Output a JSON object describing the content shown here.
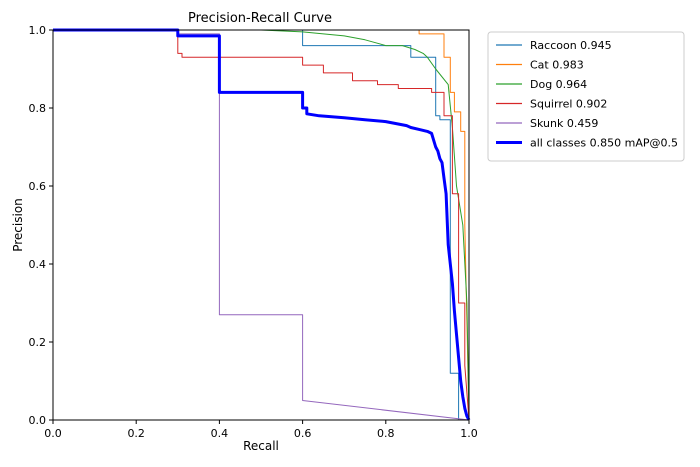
{
  "chart_data": {
    "type": "line",
    "title": "Precision-Recall Curve",
    "xlabel": "Recall",
    "ylabel": "Precision",
    "xlim": [
      0,
      1
    ],
    "ylim": [
      0,
      1
    ],
    "xticks": [
      "0.0",
      "0.2",
      "0.4",
      "0.6",
      "0.8",
      "1.0"
    ],
    "yticks": [
      "0.0",
      "0.2",
      "0.4",
      "0.6",
      "0.8",
      "1.0"
    ],
    "grid": false,
    "legend_position": "outside-top-right",
    "series": [
      {
        "name": "Raccoon 0.945",
        "color": "#1f77b4",
        "width": "normal",
        "x": [
          0,
          0.6,
          0.6,
          0.86,
          0.86,
          0.92,
          0.92,
          0.93,
          0.93,
          0.955,
          0.955,
          0.975,
          0.975,
          1.0
        ],
        "y": [
          1.0,
          1.0,
          0.96,
          0.96,
          0.93,
          0.93,
          0.78,
          0.78,
          0.77,
          0.77,
          0.12,
          0.12,
          0.0,
          0.0
        ]
      },
      {
        "name": "Cat 0.983",
        "color": "#ff7f0e",
        "width": "normal",
        "x": [
          0,
          0.88,
          0.88,
          0.94,
          0.94,
          0.955,
          0.955,
          0.965,
          0.965,
          0.98,
          0.98,
          0.99,
          0.99,
          1.0
        ],
        "y": [
          1.0,
          1.0,
          0.99,
          0.99,
          0.93,
          0.93,
          0.84,
          0.84,
          0.79,
          0.79,
          0.74,
          0.74,
          0.5,
          0.0
        ]
      },
      {
        "name": "Dog 0.964",
        "color": "#2ca02c",
        "width": "normal",
        "x": [
          0,
          0.5,
          0.6,
          0.7,
          0.75,
          0.8,
          0.84,
          0.87,
          0.89,
          0.9,
          0.92,
          0.95,
          0.96,
          0.97,
          0.985,
          0.995,
          1.0
        ],
        "y": [
          1.0,
          1.0,
          0.995,
          0.985,
          0.975,
          0.96,
          0.96,
          0.95,
          0.94,
          0.93,
          0.9,
          0.86,
          0.75,
          0.6,
          0.5,
          0.3,
          0.0
        ]
      },
      {
        "name": "Squirrel 0.902",
        "color": "#d62728",
        "width": "normal",
        "x": [
          0,
          0.3,
          0.3,
          0.31,
          0.31,
          0.6,
          0.6,
          0.65,
          0.65,
          0.72,
          0.72,
          0.78,
          0.78,
          0.83,
          0.83,
          0.91,
          0.91,
          0.94,
          0.94,
          0.96,
          0.96,
          0.975,
          0.975,
          0.99,
          0.99,
          1.0
        ],
        "y": [
          1.0,
          1.0,
          0.94,
          0.94,
          0.93,
          0.93,
          0.91,
          0.91,
          0.89,
          0.89,
          0.87,
          0.87,
          0.86,
          0.86,
          0.85,
          0.85,
          0.84,
          0.84,
          0.78,
          0.78,
          0.58,
          0.58,
          0.3,
          0.3,
          0.14,
          0.0
        ]
      },
      {
        "name": "Skunk 0.459",
        "color": "#9467bd",
        "width": "normal",
        "x": [
          0,
          0.3,
          0.3,
          0.4,
          0.4,
          0.6,
          0.6,
          1.0
        ],
        "y": [
          1.0,
          1.0,
          0.99,
          0.99,
          0.27,
          0.27,
          0.05,
          0.0
        ]
      },
      {
        "name": "all classes 0.850 mAP@0.5",
        "color": "#0000ff",
        "width": "thick",
        "x": [
          0,
          0.3,
          0.3,
          0.4,
          0.4,
          0.6,
          0.6,
          0.61,
          0.61,
          0.64,
          0.7,
          0.75,
          0.8,
          0.85,
          0.86,
          0.88,
          0.9,
          0.91,
          0.92,
          0.925,
          0.93,
          0.935,
          0.94,
          0.945,
          0.95,
          0.955,
          0.96,
          0.965,
          0.97,
          0.975,
          0.98,
          0.985,
          0.99,
          0.995,
          1.0
        ],
        "y": [
          1.0,
          1.0,
          0.985,
          0.985,
          0.84,
          0.84,
          0.8,
          0.8,
          0.785,
          0.78,
          0.775,
          0.77,
          0.765,
          0.755,
          0.75,
          0.745,
          0.74,
          0.735,
          0.7,
          0.69,
          0.67,
          0.66,
          0.62,
          0.58,
          0.45,
          0.4,
          0.35,
          0.28,
          0.22,
          0.16,
          0.1,
          0.06,
          0.03,
          0.01,
          0.0
        ]
      }
    ]
  }
}
